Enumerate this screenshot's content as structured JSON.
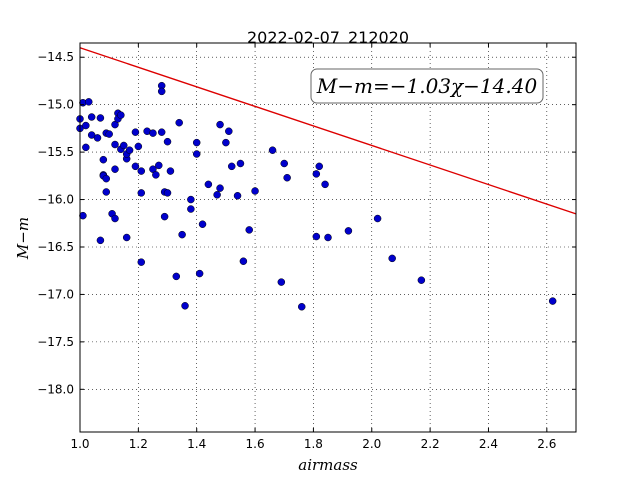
{
  "chart_data": {
    "type": "scatter",
    "title": "2022-02-07_212020",
    "xlabel": "airmass",
    "ylabel": "M−m",
    "xlim": [
      1.0,
      2.7
    ],
    "ylim": [
      -18.45,
      -14.35
    ],
    "y_inverted": true,
    "grid": true,
    "xticks": [
      1.0,
      1.2,
      1.4,
      1.6,
      1.8,
      2.0,
      2.2,
      2.4,
      2.6
    ],
    "xtick_labels": [
      "1.0",
      "1.2",
      "1.4",
      "1.6",
      "1.8",
      "2.0",
      "2.2",
      "2.4",
      "2.6"
    ],
    "yticks": [
      -14.5,
      -15.0,
      -15.5,
      -16.0,
      -16.5,
      -17.0,
      -17.5,
      -18.0
    ],
    "ytick_labels": [
      "−14.5",
      "−15.0",
      "−15.5",
      "−16.0",
      "−16.5",
      "−17.0",
      "−17.5",
      "−18.0"
    ],
    "annotation": "M−m=−1.03χ−14.40",
    "point_color": "#0000cc",
    "fit_color": "#dd0000",
    "fit": {
      "slope": -1.03,
      "intercept": -14.4
    },
    "points": [
      [
        1.0,
        -15.15
      ],
      [
        1.0,
        -15.25
      ],
      [
        1.01,
        -14.98
      ],
      [
        1.01,
        -16.17
      ],
      [
        1.02,
        -15.45
      ],
      [
        1.02,
        -15.22
      ],
      [
        1.03,
        -14.97
      ],
      [
        1.04,
        -15.13
      ],
      [
        1.04,
        -15.32
      ],
      [
        1.06,
        -15.35
      ],
      [
        1.07,
        -15.14
      ],
      [
        1.07,
        -16.43
      ],
      [
        1.08,
        -15.58
      ],
      [
        1.08,
        -15.74
      ],
      [
        1.08,
        -15.75
      ],
      [
        1.09,
        -15.92
      ],
      [
        1.09,
        -15.78
      ],
      [
        1.09,
        -15.3
      ],
      [
        1.1,
        -15.31
      ],
      [
        1.11,
        -16.15
      ],
      [
        1.12,
        -16.2
      ],
      [
        1.12,
        -15.68
      ],
      [
        1.12,
        -15.42
      ],
      [
        1.12,
        -15.21
      ],
      [
        1.13,
        -15.09
      ],
      [
        1.13,
        -15.15
      ],
      [
        1.14,
        -15.11
      ],
      [
        1.14,
        -15.47
      ],
      [
        1.15,
        -15.43
      ],
      [
        1.16,
        -16.4
      ],
      [
        1.16,
        -15.57
      ],
      [
        1.16,
        -15.52
      ],
      [
        1.17,
        -15.48
      ],
      [
        1.19,
        -15.29
      ],
      [
        1.19,
        -15.65
      ],
      [
        1.2,
        -15.44
      ],
      [
        1.21,
        -15.7
      ],
      [
        1.21,
        -15.93
      ],
      [
        1.21,
        -16.66
      ],
      [
        1.23,
        -15.28
      ],
      [
        1.25,
        -15.3
      ],
      [
        1.25,
        -15.68
      ],
      [
        1.26,
        -15.74
      ],
      [
        1.27,
        -15.64
      ],
      [
        1.28,
        -14.8
      ],
      [
        1.28,
        -14.86
      ],
      [
        1.28,
        -15.29
      ],
      [
        1.29,
        -15.92
      ],
      [
        1.29,
        -16.18
      ],
      [
        1.3,
        -15.39
      ],
      [
        1.3,
        -15.93
      ],
      [
        1.31,
        -15.7
      ],
      [
        1.33,
        -16.81
      ],
      [
        1.34,
        -15.19
      ],
      [
        1.35,
        -16.37
      ],
      [
        1.36,
        -17.12
      ],
      [
        1.38,
        -16.0
      ],
      [
        1.38,
        -16.1
      ],
      [
        1.4,
        -15.52
      ],
      [
        1.4,
        -15.4
      ],
      [
        1.41,
        -16.78
      ],
      [
        1.42,
        -16.26
      ],
      [
        1.44,
        -15.84
      ],
      [
        1.47,
        -15.95
      ],
      [
        1.48,
        -15.88
      ],
      [
        1.48,
        -15.21
      ],
      [
        1.5,
        -15.4
      ],
      [
        1.51,
        -15.28
      ],
      [
        1.52,
        -15.65
      ],
      [
        1.54,
        -15.96
      ],
      [
        1.55,
        -15.62
      ],
      [
        1.56,
        -16.65
      ],
      [
        1.58,
        -16.32
      ],
      [
        1.6,
        -15.91
      ],
      [
        1.66,
        -15.48
      ],
      [
        1.69,
        -16.87
      ],
      [
        1.7,
        -15.62
      ],
      [
        1.71,
        -15.77
      ],
      [
        1.76,
        -17.13
      ],
      [
        1.81,
        -15.73
      ],
      [
        1.81,
        -16.39
      ],
      [
        1.82,
        -15.65
      ],
      [
        1.84,
        -15.84
      ],
      [
        1.85,
        -16.4
      ],
      [
        1.92,
        -16.33
      ],
      [
        2.02,
        -16.2
      ],
      [
        2.07,
        -16.62
      ],
      [
        2.17,
        -16.85
      ],
      [
        2.62,
        -17.07
      ]
    ]
  }
}
